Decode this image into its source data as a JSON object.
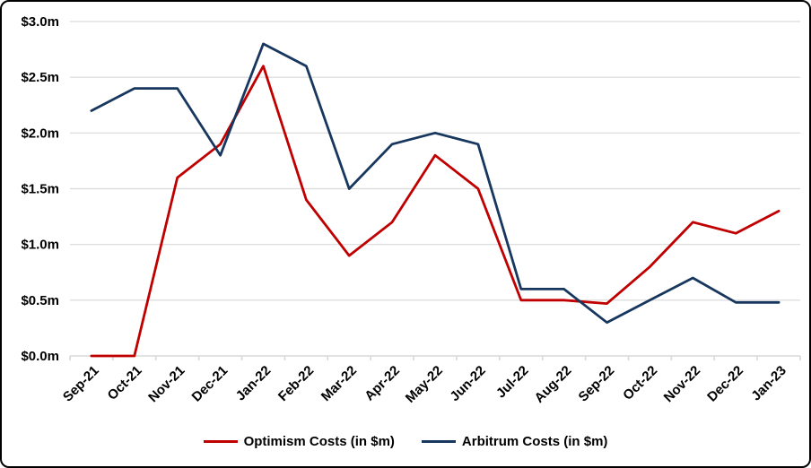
{
  "chart_data": {
    "type": "line",
    "title": "",
    "categories": [
      "Sep-21",
      "Oct-21",
      "Nov-21",
      "Dec-21",
      "Jan-22",
      "Feb-22",
      "Mar-22",
      "Apr-22",
      "May-22",
      "Jun-22",
      "Jul-22",
      "Aug-22",
      "Sep-22",
      "Oct-22",
      "Nov-22",
      "Dec-22",
      "Jan-23"
    ],
    "series": [
      {
        "name": "Optimism Costs (in $m)",
        "color": "#C00000",
        "values": [
          0.0,
          0.0,
          1.6,
          1.9,
          2.6,
          1.4,
          0.9,
          1.2,
          1.8,
          1.5,
          0.5,
          0.5,
          0.47,
          0.8,
          1.2,
          1.1,
          1.3
        ]
      },
      {
        "name": "Arbitrum Costs (in $m)",
        "color": "#17375E",
        "values": [
          2.2,
          2.4,
          2.4,
          1.8,
          2.8,
          2.6,
          1.5,
          1.9,
          2.0,
          1.9,
          0.6,
          0.6,
          0.3,
          0.5,
          0.7,
          0.48,
          0.48
        ]
      }
    ],
    "xlabel": "",
    "ylabel": "",
    "ylim": [
      0,
      3
    ],
    "y_ticks": [
      0,
      0.5,
      1,
      1.5,
      2,
      2.5,
      3
    ],
    "y_tick_labels": [
      "$0.0m",
      "$0.5m",
      "$1.0m",
      "$1.5m",
      "$2.0m",
      "$2.5m",
      "$3.0m"
    ],
    "grid": "horizontal",
    "gridline_color": "#D9D9D9",
    "axis_color": "#D9D9D9",
    "text_color": "#000000",
    "legend_position": "bottom"
  }
}
